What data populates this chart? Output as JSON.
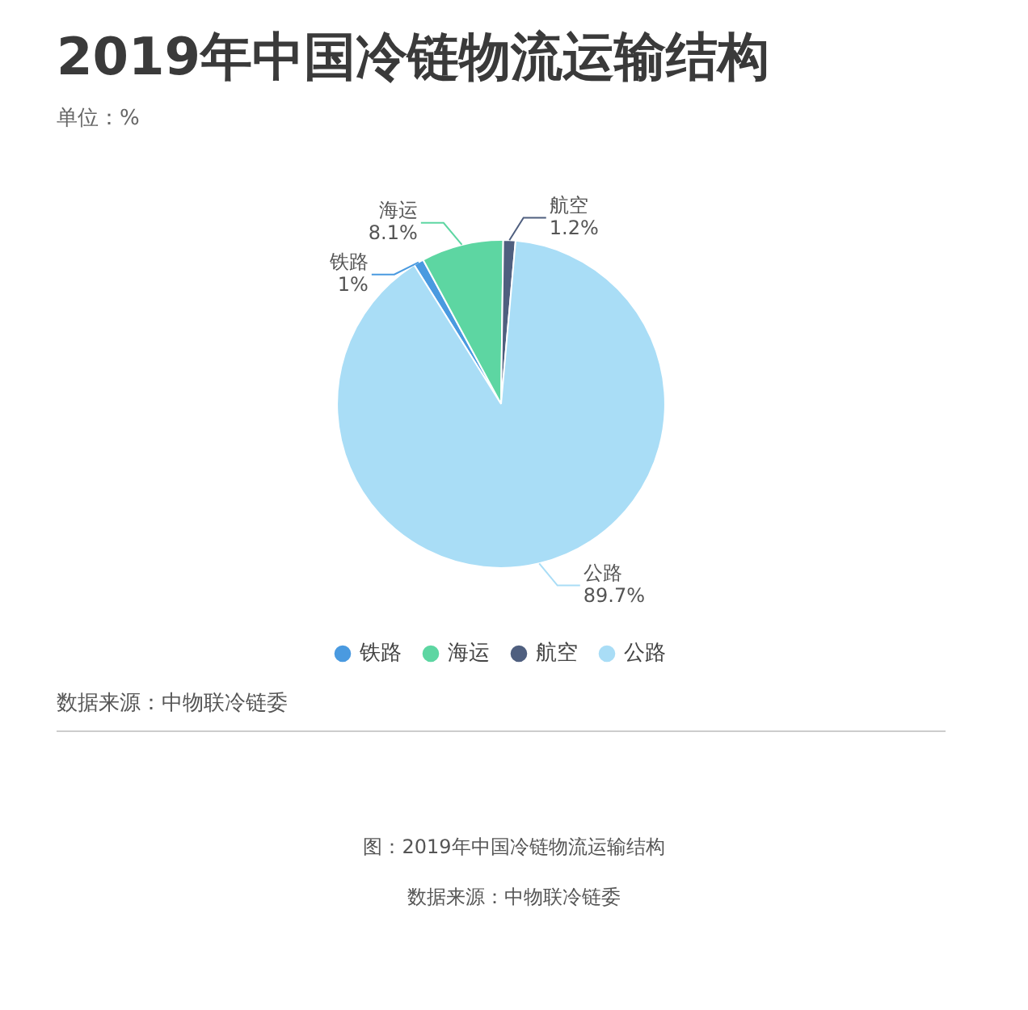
{
  "chart_data": {
    "type": "pie",
    "title": "2019年中国冷链物流运输结构",
    "subtitle": "单位：%",
    "categories": [
      "铁路",
      "海运",
      "航空",
      "公路"
    ],
    "values": [
      1,
      8.1,
      1.2,
      89.7
    ],
    "colors": [
      "#4a9ae0",
      "#5dd6a2",
      "#4f5f7f",
      "#a9ddf6"
    ],
    "value_labels": [
      "1%",
      "8.1%",
      "1.2%",
      "89.7%"
    ],
    "legend": "bottom",
    "annotations": [
      "数据来源：中物联冷链委",
      "图：2019年中国冷链物流运输结构",
      "数据来源：中物联冷链委"
    ]
  }
}
